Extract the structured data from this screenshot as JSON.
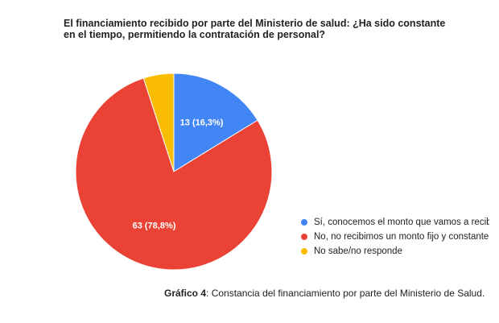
{
  "chart_data": {
    "type": "pie",
    "title_lines": [
      "El financiamiento recibido por parte del Ministerio de salud: ¿Ha sido constante",
      "en el tiempo, permitiendo la contratación de personal?"
    ],
    "slices": [
      {
        "label": "Sí, conocemos el monto que vamos a recibir",
        "value": 13,
        "percent": 16.3,
        "data_label": "13 (16,3%)",
        "color": "#4285f4"
      },
      {
        "label": "No, no recibimos un monto fijo y constante",
        "value": 63,
        "percent": 78.8,
        "data_label": "63 (78,8%)",
        "color": "#ea4335"
      },
      {
        "label": "No sabe/no responde",
        "value": 4,
        "percent": 5.0,
        "data_label": "",
        "color": "#fbbc04"
      }
    ],
    "legend_position": "right"
  },
  "caption": {
    "prefix": "Gráfico 4",
    "text": ": Constancia del financiamiento por parte del Ministerio de Salud."
  }
}
